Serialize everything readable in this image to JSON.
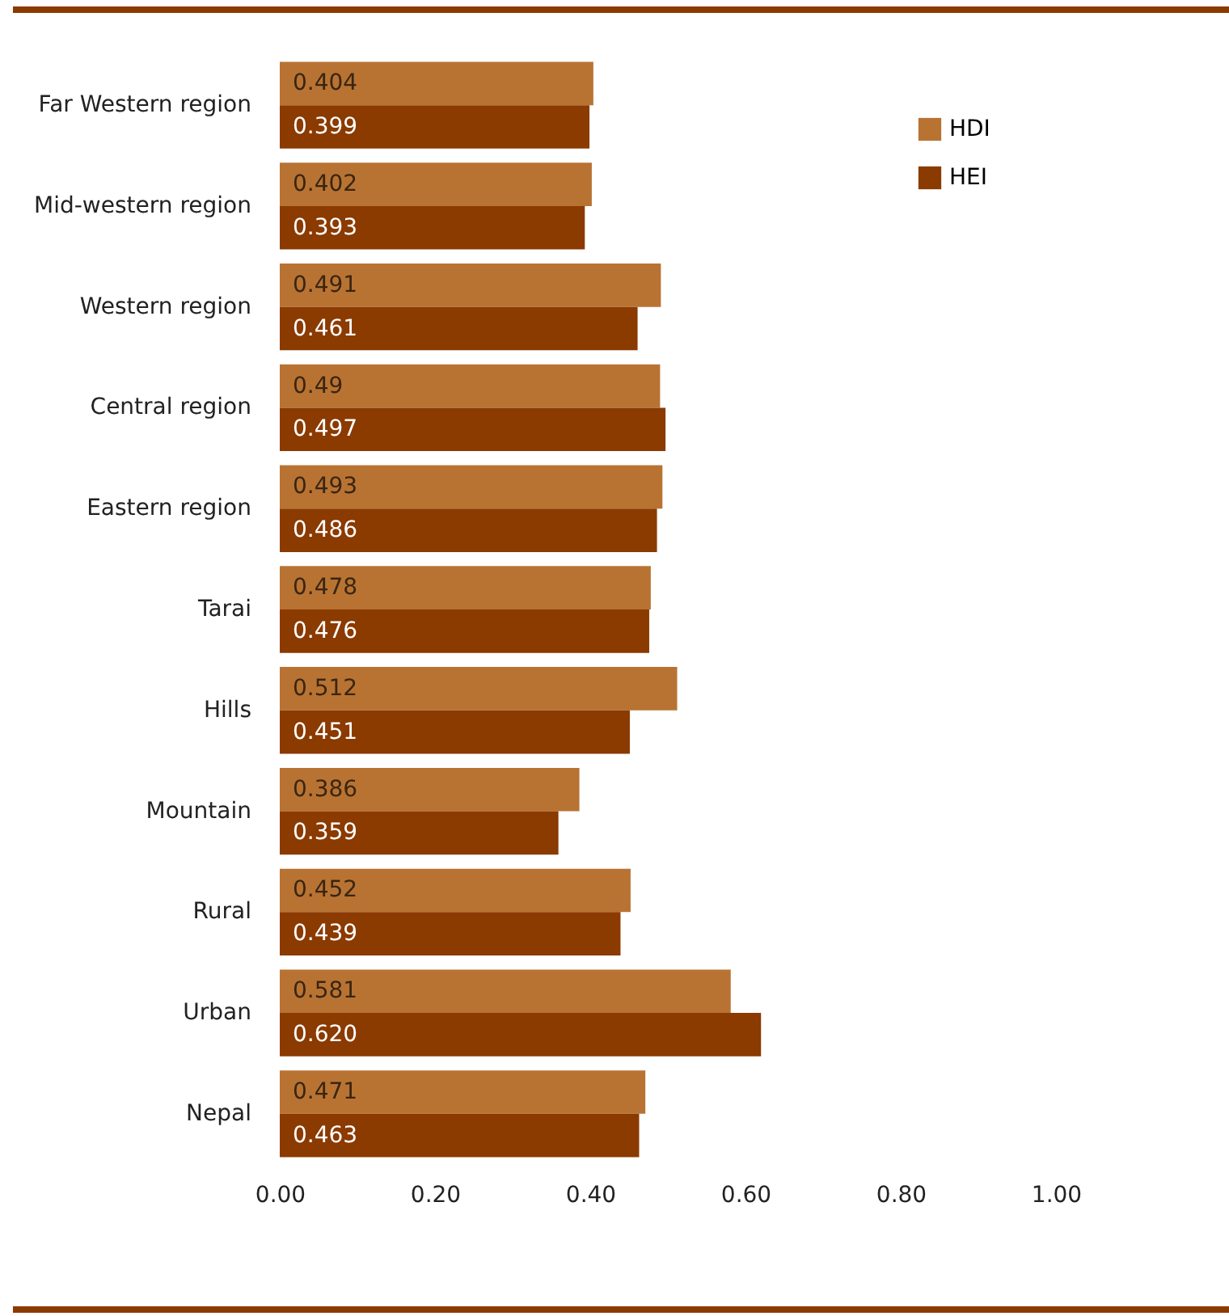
{
  "chart_data": {
    "type": "bar",
    "orientation": "horizontal",
    "categories": [
      "Far Western region",
      "Mid-western region",
      "Western region",
      "Central region",
      "Eastern region",
      "Tarai",
      "Hills",
      "Mountain",
      "Rural",
      "Urban",
      "Nepal"
    ],
    "series": [
      {
        "name": "HDI",
        "color": "#b87333",
        "values": [
          0.404,
          0.402,
          0.491,
          0.49,
          0.493,
          0.478,
          0.512,
          0.386,
          0.452,
          0.581,
          0.471
        ],
        "value_labels": [
          "0.404",
          "0.402",
          "0.491",
          "0.49",
          "0.493",
          "0.478",
          "0.512",
          "0.386",
          "0.452",
          "0.581",
          "0.471"
        ]
      },
      {
        "name": "HEI",
        "color": "#8b3a00",
        "values": [
          0.399,
          0.393,
          0.461,
          0.497,
          0.486,
          0.476,
          0.451,
          0.359,
          0.439,
          0.62,
          0.463
        ],
        "value_labels": [
          "0.399",
          "0.393",
          "0.461",
          "0.497",
          "0.486",
          "0.476",
          "0.451",
          "0.359",
          "0.439",
          "0.620",
          "0.463"
        ]
      }
    ],
    "xlim": [
      0,
      1
    ],
    "xticks": [
      {
        "value": 0,
        "label": "0.00"
      },
      {
        "value": 0.2,
        "label": "0.20"
      },
      {
        "value": 0.4,
        "label": "0.40"
      },
      {
        "value": 0.6,
        "label": "0.60"
      },
      {
        "value": 0.8,
        "label": "0.80"
      },
      {
        "value": 1,
        "label": "1.00"
      }
    ],
    "grid": false,
    "legend": "top right"
  }
}
